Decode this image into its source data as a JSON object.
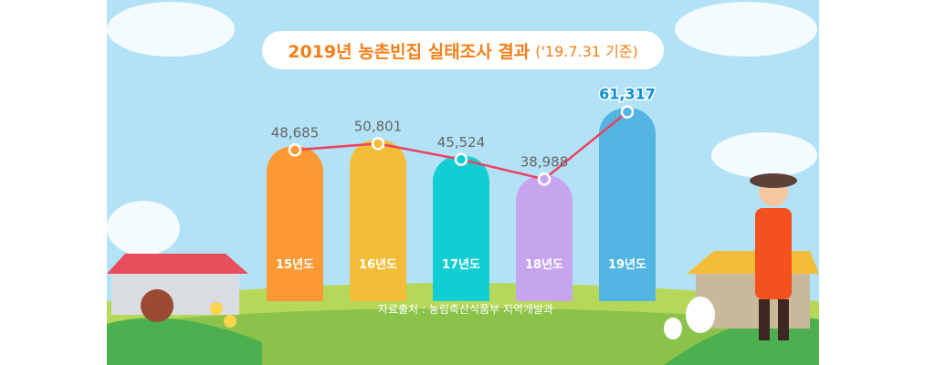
{
  "chart_data": {
    "type": "bar",
    "title": "2019년 농촌빈집 실태조사 결과",
    "subtitle": "('19.7.31 기준)",
    "categories": [
      "15년도",
      "16년도",
      "17년도",
      "18년도",
      "19년도"
    ],
    "values": [
      48685,
      50801,
      45524,
      38988,
      61317
    ],
    "value_labels": [
      "48,685",
      "50,801",
      "45,524",
      "38,988",
      "61,317"
    ],
    "bar_colors": [
      "#fb9934",
      "#f3bd37",
      "#12cdd1",
      "#c7a5ee",
      "#52b5e1"
    ],
    "line_color": "#ee4060",
    "highlight_label_color": "#0b8fd8",
    "overlay_line": true,
    "grid": false,
    "source": "자료출처 : 농림축산식품부 지역개발과"
  },
  "colors": {
    "sky": "#b3e2f6",
    "title": "#f57f17",
    "grass": "#8bc34a"
  }
}
